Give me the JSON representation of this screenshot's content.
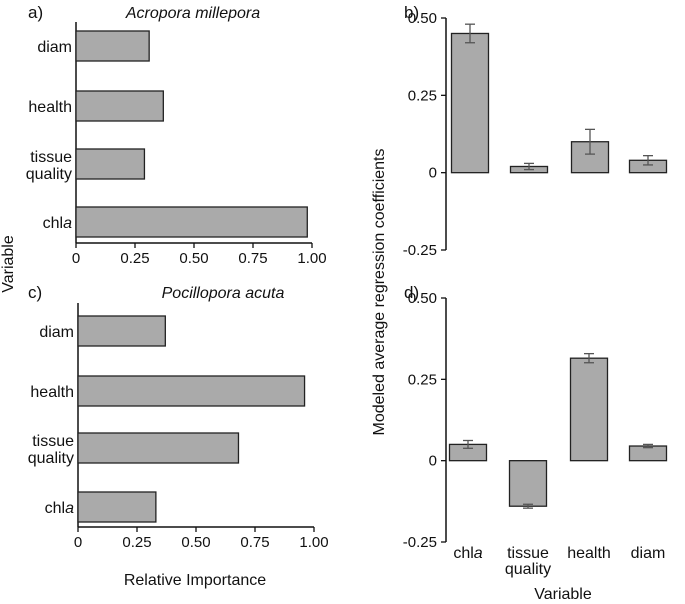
{
  "chart_data": [
    {
      "type": "bar",
      "orientation": "horizontal",
      "panel_label": "a)",
      "title": "Acropora millepora",
      "categories": [
        "diam",
        "health",
        "tissue quality",
        "chla"
      ],
      "category_lines": [
        [
          "diam"
        ],
        [
          "health"
        ],
        [
          "tissue",
          "quality"
        ],
        [
          "chla"
        ]
      ],
      "values": [
        0.31,
        0.37,
        0.29,
        0.98
      ],
      "xlim": [
        0,
        1
      ],
      "xticks": [
        "0",
        "0.25",
        "0.50",
        "0.75",
        "1.00"
      ],
      "xtick_values": [
        0,
        0.25,
        0.5,
        0.75,
        1.0
      ],
      "grid": false
    },
    {
      "type": "bar",
      "orientation": "horizontal",
      "panel_label": "c)",
      "title": "Pocillopora acuta",
      "categories": [
        "diam",
        "health",
        "tissue quality",
        "chla"
      ],
      "category_lines": [
        [
          "diam"
        ],
        [
          "health"
        ],
        [
          "tissue",
          "quality"
        ],
        [
          "chla"
        ]
      ],
      "values": [
        0.37,
        0.96,
        0.68,
        0.33
      ],
      "xlim": [
        0,
        1
      ],
      "xticks": [
        "0",
        "0.25",
        "0.50",
        "0.75",
        "1.00"
      ],
      "xtick_values": [
        0,
        0.25,
        0.5,
        0.75,
        1.0
      ],
      "grid": false
    },
    {
      "type": "bar",
      "orientation": "vertical",
      "panel_label": "b)",
      "categories": [
        "chla",
        "tissue quality",
        "health",
        "diam"
      ],
      "values": [
        0.45,
        0.02,
        0.1,
        0.04
      ],
      "errors": [
        0.03,
        0.01,
        0.04,
        0.015
      ],
      "ylim": [
        -0.25,
        0.5
      ],
      "yticks": [
        "0.50",
        "0.25",
        "0",
        "-0.25"
      ],
      "ytick_values": [
        0.5,
        0.25,
        0,
        -0.25
      ],
      "grid": false
    },
    {
      "type": "bar",
      "orientation": "vertical",
      "panel_label": "d)",
      "categories": [
        "chla",
        "tissue quality",
        "health",
        "diam"
      ],
      "category_lines": [
        [
          "chla"
        ],
        [
          "tissue",
          "quality"
        ],
        [
          "health"
        ],
        [
          "diam"
        ]
      ],
      "values": [
        0.05,
        -0.14,
        0.315,
        0.045
      ],
      "errors": [
        0.012,
        0.006,
        0.014,
        0.005
      ],
      "ylim": [
        -0.25,
        0.5
      ],
      "yticks": [
        "0.50",
        "0.25",
        "0",
        "-0.25"
      ],
      "ytick_values": [
        0.5,
        0.25,
        0,
        -0.25
      ],
      "grid": false
    }
  ],
  "labels": {
    "left_ylabel": "Variable",
    "left_xlabel": "Relative Importance",
    "right_ylabel": "Modeled average regression coefficients",
    "right_xlabel": "Variable"
  },
  "colors": {
    "bar_fill": "#aaaaaa",
    "bar_stroke": "#222222",
    "error_bar": "#555555",
    "axis": "#111111"
  }
}
